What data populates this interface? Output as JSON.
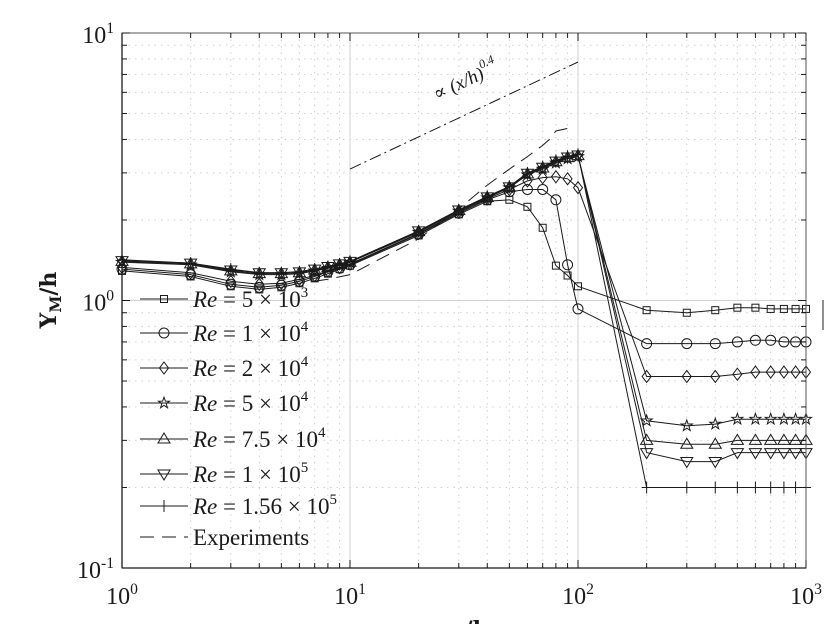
{
  "chart_data": {
    "type": "line",
    "title": "",
    "xlabel": "x/h",
    "ylabel": "Y_M/h",
    "xscale": "log",
    "yscale": "log",
    "xlim": [
      1,
      1000
    ],
    "ylim": [
      0.1,
      10
    ],
    "grid": "major solid, minor dotted",
    "legend_position": "bottom-left",
    "x_ticks": [
      "10^0",
      "10^1",
      "10^2",
      "10^3"
    ],
    "y_ticks": [
      "10^-1",
      "10^0",
      "10^1"
    ],
    "x": [
      1,
      2,
      3,
      4,
      5,
      6,
      7,
      8,
      9,
      10,
      20,
      30,
      40,
      50,
      60,
      70,
      80,
      90,
      100,
      200,
      300,
      400,
      500,
      600,
      700,
      800,
      900,
      1000
    ],
    "series": [
      {
        "name": "Re = 5 × 10^3",
        "marker": "square",
        "values": [
          1.29,
          1.23,
          1.13,
          1.1,
          1.12,
          1.16,
          1.21,
          1.26,
          1.31,
          1.35,
          1.75,
          2.1,
          2.35,
          2.38,
          2.24,
          1.87,
          1.35,
          1.24,
          1.13,
          0.92,
          0.9,
          0.92,
          0.94,
          0.94,
          0.93,
          0.93,
          0.93,
          0.93
        ]
      },
      {
        "name": "Re = 1 × 10^4",
        "marker": "circle",
        "values": [
          1.31,
          1.25,
          1.15,
          1.12,
          1.14,
          1.18,
          1.23,
          1.28,
          1.32,
          1.36,
          1.77,
          2.12,
          2.38,
          2.55,
          2.6,
          2.6,
          2.38,
          1.36,
          0.93,
          0.69,
          0.69,
          0.69,
          0.7,
          0.71,
          0.71,
          0.7,
          0.7,
          0.7
        ]
      },
      {
        "name": "Re = 2 × 10^4",
        "marker": "diamond",
        "values": [
          1.33,
          1.27,
          1.18,
          1.15,
          1.16,
          1.2,
          1.24,
          1.29,
          1.33,
          1.37,
          1.78,
          2.14,
          2.4,
          2.6,
          2.8,
          2.88,
          2.9,
          2.85,
          2.64,
          0.52,
          0.52,
          0.52,
          0.53,
          0.54,
          0.54,
          0.54,
          0.54,
          0.54
        ]
      },
      {
        "name": "Re = 5 × 10^4",
        "marker": "star",
        "values": [
          1.39,
          1.36,
          1.28,
          1.25,
          1.25,
          1.26,
          1.29,
          1.32,
          1.35,
          1.39,
          1.8,
          2.16,
          2.42,
          2.64,
          2.95,
          3.1,
          3.27,
          3.39,
          3.45,
          0.355,
          0.34,
          0.345,
          0.36,
          0.36,
          0.36,
          0.36,
          0.36,
          0.36
        ]
      },
      {
        "name": "Re = 7.5 × 10^4",
        "marker": "triangle-up",
        "values": [
          1.4,
          1.37,
          1.29,
          1.26,
          1.26,
          1.27,
          1.3,
          1.33,
          1.36,
          1.39,
          1.81,
          2.17,
          2.43,
          2.65,
          2.97,
          3.13,
          3.3,
          3.42,
          3.48,
          0.3,
          0.29,
          0.29,
          0.3,
          0.3,
          0.3,
          0.3,
          0.3,
          0.3
        ]
      },
      {
        "name": "Re = 1 × 10^5",
        "marker": "triangle-down",
        "values": [
          1.41,
          1.38,
          1.3,
          1.27,
          1.27,
          1.28,
          1.31,
          1.34,
          1.37,
          1.4,
          1.82,
          2.18,
          2.44,
          2.66,
          2.99,
          3.15,
          3.32,
          3.44,
          3.5,
          0.27,
          0.25,
          0.25,
          0.27,
          0.27,
          0.27,
          0.27,
          0.27,
          0.27
        ]
      },
      {
        "name": "Re = 1.56 × 10^5",
        "marker": "plus",
        "values": [
          1.42,
          1.38,
          1.31,
          1.27,
          1.27,
          1.28,
          1.31,
          1.34,
          1.37,
          1.4,
          1.82,
          2.18,
          2.45,
          2.67,
          3.0,
          3.17,
          3.34,
          3.46,
          3.52,
          0.2,
          0.2,
          0.2,
          0.2,
          0.2,
          0.2,
          0.2,
          0.2,
          0.2
        ]
      },
      {
        "name": "Experiments",
        "marker": "none",
        "line": "dashed",
        "x": [
          7,
          8,
          10,
          20,
          30,
          40,
          50,
          60,
          70,
          75,
          80,
          90
        ],
        "values": [
          1.18,
          1.2,
          1.25,
          1.7,
          2.2,
          2.7,
          3.1,
          3.45,
          3.8,
          4.0,
          4.3,
          4.4
        ]
      }
    ],
    "reference_line": {
      "label": "∝ (x/h)^0.4",
      "line": "dash-dot",
      "x": [
        10,
        100
      ],
      "values": [
        3.1,
        7.79
      ]
    },
    "colors": {
      "lines": "#1a1a1a",
      "grid": "#d0d0d0"
    }
  }
}
